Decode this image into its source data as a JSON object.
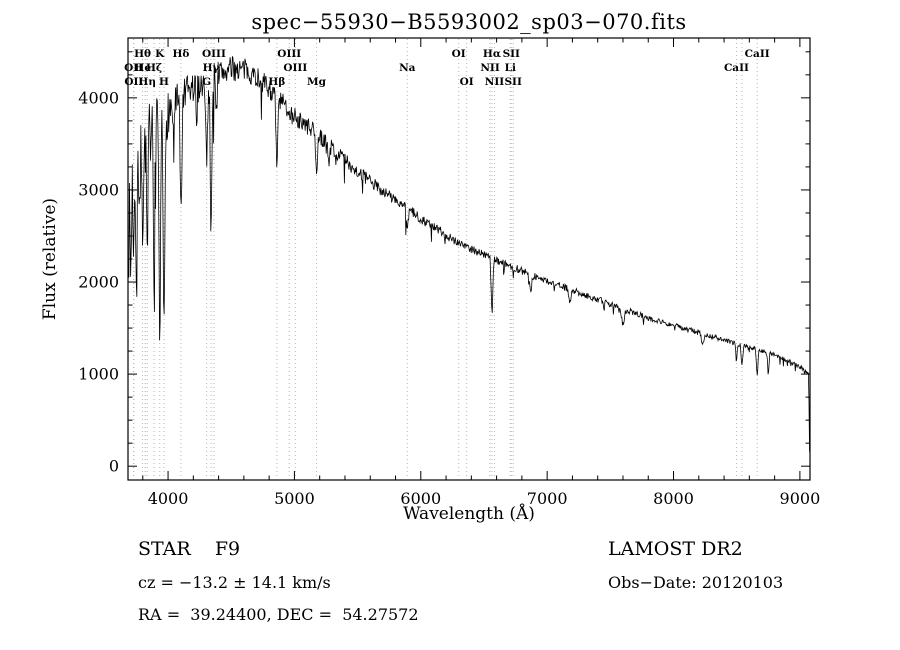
{
  "chart_data": {
    "type": "line",
    "title": "spec−55930−B5593002_sp03−070.fits",
    "xlabel": "Wavelength (Å)",
    "ylabel": "Flux (relative)",
    "xlim": [
      3683,
      9080
    ],
    "ylim": [
      -150,
      4650
    ],
    "xticks": [
      4000,
      5000,
      6000,
      7000,
      8000,
      9000
    ],
    "yticks": [
      0,
      1000,
      2000,
      3000,
      4000
    ],
    "x_minor_step": 200,
    "y_minor_step": 250,
    "grid": false,
    "legend": "none",
    "line_color": "#000000",
    "marker_color": "#e9a0a0",
    "sample_step": 4.5,
    "continuum": [
      [
        3685,
        2300
      ],
      [
        3700,
        2900
      ],
      [
        3720,
        3100
      ],
      [
        3740,
        3200
      ],
      [
        3760,
        3350
      ],
      [
        3780,
        3500
      ],
      [
        3800,
        3550
      ],
      [
        3830,
        3600
      ],
      [
        3860,
        3650
      ],
      [
        3900,
        3680
      ],
      [
        3940,
        3700
      ],
      [
        3970,
        3720
      ],
      [
        4000,
        3850
      ],
      [
        4040,
        3900
      ],
      [
        4080,
        3950
      ],
      [
        4120,
        4000
      ],
      [
        4160,
        4050
      ],
      [
        4200,
        4100
      ],
      [
        4250,
        4150
      ],
      [
        4300,
        4200
      ],
      [
        4350,
        4230
      ],
      [
        4400,
        4260
      ],
      [
        4450,
        4290
      ],
      [
        4500,
        4310
      ],
      [
        4550,
        4320
      ],
      [
        4600,
        4300
      ],
      [
        4650,
        4280
      ],
      [
        4700,
        4230
      ],
      [
        4750,
        4170
      ],
      [
        4800,
        4100
      ],
      [
        4850,
        4030
      ],
      [
        4900,
        3950
      ],
      [
        4950,
        3880
      ],
      [
        5000,
        3800
      ],
      [
        5050,
        3740
      ],
      [
        5100,
        3690
      ],
      [
        5150,
        3640
      ],
      [
        5200,
        3580
      ],
      [
        5250,
        3520
      ],
      [
        5300,
        3450
      ],
      [
        5350,
        3390
      ],
      [
        5400,
        3330
      ],
      [
        5450,
        3260
      ],
      [
        5500,
        3200
      ],
      [
        5600,
        3090
      ],
      [
        5700,
        2990
      ],
      [
        5800,
        2890
      ],
      [
        5900,
        2790
      ],
      [
        6000,
        2690
      ],
      [
        6100,
        2600
      ],
      [
        6200,
        2510
      ],
      [
        6300,
        2430
      ],
      [
        6400,
        2360
      ],
      [
        6500,
        2300
      ],
      [
        6600,
        2240
      ],
      [
        6700,
        2180
      ],
      [
        6800,
        2120
      ],
      [
        6900,
        2060
      ],
      [
        7000,
        2010
      ],
      [
        7100,
        1960
      ],
      [
        7200,
        1910
      ],
      [
        7300,
        1860
      ],
      [
        7400,
        1810
      ],
      [
        7500,
        1760
      ],
      [
        7600,
        1710
      ],
      [
        7700,
        1660
      ],
      [
        7800,
        1610
      ],
      [
        7900,
        1570
      ],
      [
        8000,
        1530
      ],
      [
        8100,
        1490
      ],
      [
        8200,
        1450
      ],
      [
        8300,
        1410
      ],
      [
        8400,
        1370
      ],
      [
        8500,
        1330
      ],
      [
        8600,
        1290
      ],
      [
        8700,
        1250
      ],
      [
        8800,
        1210
      ],
      [
        8900,
        1150
      ],
      [
        9000,
        1080
      ],
      [
        9040,
        1040
      ],
      [
        9060,
        1010
      ],
      [
        9070,
        990
      ],
      [
        9074,
        400
      ],
      [
        9078,
        40
      ]
    ],
    "noise_profile": [
      [
        3690,
        460
      ],
      [
        3780,
        420
      ],
      [
        3850,
        340
      ],
      [
        3950,
        300
      ],
      [
        4050,
        230
      ],
      [
        4200,
        190
      ],
      [
        4350,
        170
      ],
      [
        4500,
        140
      ],
      [
        4700,
        120
      ],
      [
        4900,
        110
      ],
      [
        5200,
        90
      ],
      [
        5600,
        70
      ],
      [
        6000,
        55
      ],
      [
        6500,
        45
      ],
      [
        7000,
        38
      ],
      [
        7500,
        32
      ],
      [
        8000,
        28
      ],
      [
        8600,
        26
      ],
      [
        9080,
        20
      ]
    ],
    "absorption_lines": [
      [
        3705,
        900,
        6
      ],
      [
        3727,
        700,
        5
      ],
      [
        3750,
        1400,
        6
      ],
      [
        3770,
        900,
        5
      ],
      [
        3798,
        1300,
        7
      ],
      [
        3835,
        1500,
        8
      ],
      [
        3889,
        1800,
        8
      ],
      [
        3934,
        2400,
        9
      ],
      [
        3968,
        2300,
        9
      ],
      [
        4045,
        500,
        6
      ],
      [
        4102,
        1200,
        10
      ],
      [
        4226,
        500,
        6
      ],
      [
        4305,
        800,
        12
      ],
      [
        4340,
        1600,
        9
      ],
      [
        4383,
        400,
        6
      ],
      [
        4861,
        750,
        10
      ],
      [
        5175,
        350,
        12
      ],
      [
        5270,
        200,
        8
      ],
      [
        5893,
        280,
        9
      ],
      [
        6563,
        600,
        9
      ],
      [
        6870,
        200,
        10
      ],
      [
        7180,
        120,
        12
      ],
      [
        7600,
        180,
        14
      ],
      [
        8230,
        120,
        12
      ],
      [
        8498,
        180,
        8
      ],
      [
        8542,
        220,
        8
      ],
      [
        8662,
        260,
        8
      ],
      [
        8750,
        230,
        7
      ]
    ],
    "line_markers": [
      {
        "wl": 3798,
        "row": 1,
        "label": "Hθ"
      },
      {
        "wl": 3934,
        "row": 1,
        "label": "K"
      },
      {
        "wl": 4102,
        "row": 1,
        "label": "Hδ"
      },
      {
        "wl": 4363,
        "row": 1,
        "label": "OIII"
      },
      {
        "wl": 4959,
        "row": 1,
        "label": "OIII"
      },
      {
        "wl": 6300,
        "row": 1,
        "label": "OI"
      },
      {
        "wl": 6563,
        "row": 1,
        "label": "Hα"
      },
      {
        "wl": 6716,
        "row": 1,
        "label": "SII"
      },
      {
        "wl": 8662,
        "row": 1,
        "label": "CaII"
      },
      {
        "wl": 3727,
        "row": 2,
        "label": "OII"
      },
      {
        "wl": 3819,
        "row": 2,
        "label": "HeI"
      },
      {
        "wl": 3889,
        "row": 2,
        "label": "Hζ"
      },
      {
        "wl": 4340,
        "row": 2,
        "label": "Hγ"
      },
      {
        "wl": 5007,
        "row": 2,
        "label": "OIII"
      },
      {
        "wl": 5893,
        "row": 2,
        "label": "Na"
      },
      {
        "wl": 6548,
        "row": 2,
        "label": "NII"
      },
      {
        "wl": 6708,
        "row": 2,
        "label": "Li"
      },
      {
        "wl": 8498,
        "row": 2,
        "label": "CaII"
      },
      {
        "wl": 3729,
        "row": 3,
        "label": "OII"
      },
      {
        "wl": 3835,
        "row": 3,
        "label": "Hη"
      },
      {
        "wl": 3968,
        "row": 3,
        "label": "H"
      },
      {
        "wl": 4305,
        "row": 3,
        "label": "G"
      },
      {
        "wl": 4861,
        "row": 3,
        "label": "Hβ"
      },
      {
        "wl": 5175,
        "row": 3,
        "label": "Mg"
      },
      {
        "wl": 6363,
        "row": 3,
        "label": "OI"
      },
      {
        "wl": 6583,
        "row": 3,
        "label": "NII"
      },
      {
        "wl": 6731,
        "row": 3,
        "label": "SII"
      },
      {
        "wl": 8542,
        "row": 1,
        "label": ""
      }
    ]
  },
  "annotations": {
    "class_label": "STAR    F9",
    "survey": "LAMOST DR2",
    "cz": "cz = −13.2 ± 14.1 km/s",
    "obs_date": "Obs−Date: 20120103",
    "radec": "RA =  39.24400, DEC =  54.27572"
  }
}
